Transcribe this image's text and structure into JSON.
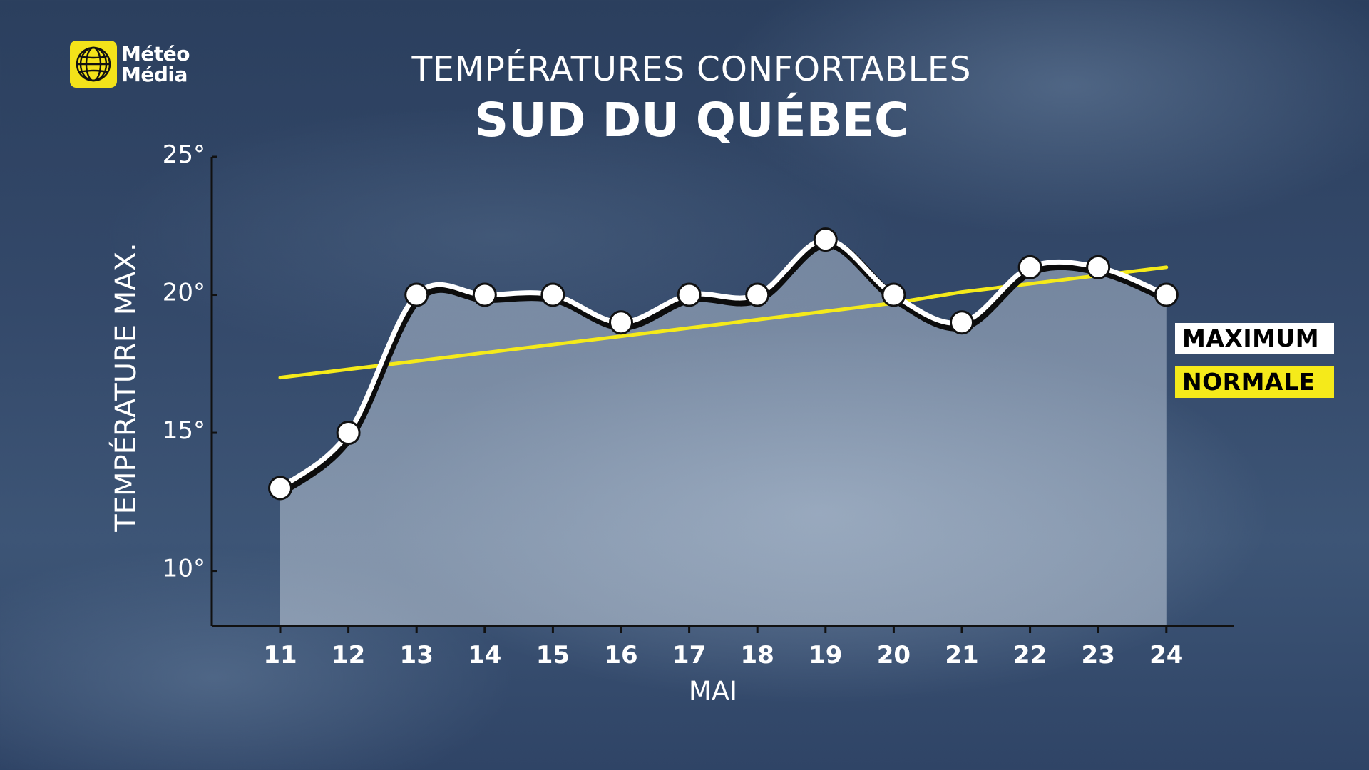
{
  "brand": {
    "line1": "Météo",
    "line2": "Média",
    "logo_icon": "globe-icon",
    "logo_color": "#f3e21a"
  },
  "chart_data": {
    "type": "line",
    "title": "TEMPÉRATURES CONFORTABLES",
    "subtitle": "SUD DU QUÉBEC",
    "xlabel": "MAI",
    "ylabel": "TEMPÉRATURE MAX.",
    "categories": [
      "11",
      "12",
      "13",
      "14",
      "15",
      "16",
      "17",
      "18",
      "19",
      "20",
      "21",
      "22",
      "23",
      "24"
    ],
    "ylim": [
      8,
      25
    ],
    "yticks": [
      {
        "value": 10,
        "label": "10°"
      },
      {
        "value": 15,
        "label": "15°"
      },
      {
        "value": 20,
        "label": "20°"
      },
      {
        "value": 25,
        "label": "25°"
      }
    ],
    "series": [
      {
        "name": "MAXIMUM",
        "color": "#ffffff",
        "values": [
          13,
          15,
          20,
          20,
          20,
          19,
          20,
          20,
          22,
          20,
          19,
          21,
          21,
          20
        ]
      },
      {
        "name": "NORMALE",
        "color": "#f5ea1a",
        "values": [
          17,
          17.3,
          17.6,
          17.9,
          18.2,
          18.5,
          18.8,
          19.1,
          19.4,
          19.7,
          20.1,
          20.4,
          20.7,
          21
        ]
      }
    ],
    "grid": false,
    "legend_position": "right"
  }
}
